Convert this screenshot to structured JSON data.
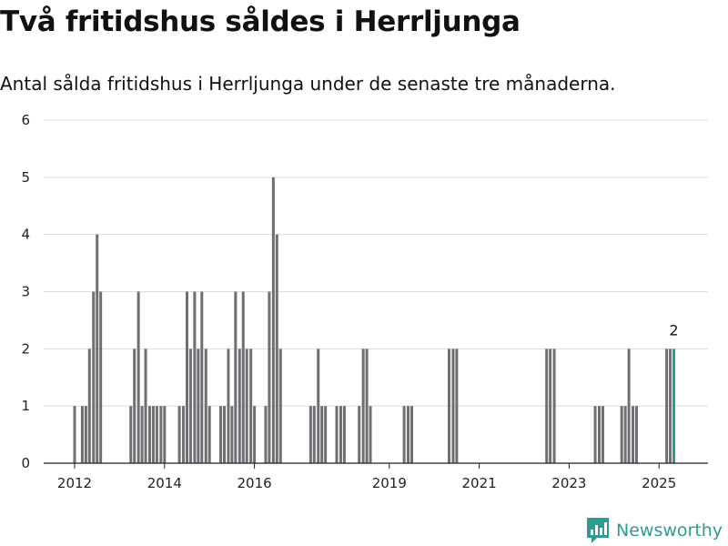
{
  "title": "Två fritidshus såldes i Herrljunga",
  "subtitle": "Antal sålda fritidshus i Herrljunga under de senaste tre månaderna.",
  "brand": {
    "name": "Newsworthy",
    "logo_icon": "newsworthy-logo-icon",
    "color": "#2f9b91"
  },
  "chart_data": {
    "type": "bar",
    "title": "Två fritidshus såldes i Herrljunga",
    "subtitle": "Antal sålda fritidshus i Herrljunga under de senaste tre månaderna.",
    "xlabel": "",
    "ylabel": "",
    "ylim": [
      0,
      6
    ],
    "yticks": [
      0,
      1,
      2,
      3,
      4,
      5,
      6
    ],
    "xticks": [
      "2012",
      "2014",
      "2016",
      "2019",
      "2021",
      "2023",
      "2025"
    ],
    "grid": true,
    "colors": {
      "bar": "#6f6f73",
      "highlight": "#2a9d8f"
    },
    "highlight_label": "2",
    "series": [
      {
        "values": [
          [
            2012.0,
            1
          ],
          [
            2012.17,
            1
          ],
          [
            2012.25,
            1
          ],
          [
            2012.33,
            2
          ],
          [
            2012.42,
            3
          ],
          [
            2012.5,
            4
          ],
          [
            2012.58,
            3
          ],
          [
            2013.25,
            1
          ],
          [
            2013.33,
            2
          ],
          [
            2013.42,
            3
          ],
          [
            2013.5,
            1
          ],
          [
            2013.58,
            2
          ],
          [
            2013.67,
            1
          ],
          [
            2013.75,
            1
          ],
          [
            2013.83,
            1
          ],
          [
            2013.92,
            1
          ],
          [
            2014.0,
            1
          ],
          [
            2014.33,
            1
          ],
          [
            2014.42,
            1
          ],
          [
            2014.5,
            3
          ],
          [
            2014.58,
            2
          ],
          [
            2014.67,
            3
          ],
          [
            2014.75,
            2
          ],
          [
            2014.83,
            3
          ],
          [
            2014.92,
            2
          ],
          [
            2015.0,
            1
          ],
          [
            2015.25,
            1
          ],
          [
            2015.33,
            1
          ],
          [
            2015.42,
            2
          ],
          [
            2015.5,
            1
          ],
          [
            2015.58,
            3
          ],
          [
            2015.67,
            2
          ],
          [
            2015.75,
            3
          ],
          [
            2015.83,
            2
          ],
          [
            2015.92,
            2
          ],
          [
            2016.0,
            1
          ],
          [
            2016.25,
            1
          ],
          [
            2016.33,
            3
          ],
          [
            2016.42,
            5
          ],
          [
            2016.5,
            4
          ],
          [
            2016.58,
            2
          ],
          [
            2017.25,
            1
          ],
          [
            2017.33,
            1
          ],
          [
            2017.42,
            2
          ],
          [
            2017.5,
            1
          ],
          [
            2017.58,
            1
          ],
          [
            2017.83,
            1
          ],
          [
            2017.92,
            1
          ],
          [
            2018.0,
            1
          ],
          [
            2018.33,
            1
          ],
          [
            2018.42,
            2
          ],
          [
            2018.5,
            2
          ],
          [
            2018.58,
            1
          ],
          [
            2019.33,
            1
          ],
          [
            2019.42,
            1
          ],
          [
            2019.5,
            1
          ],
          [
            2020.33,
            2
          ],
          [
            2020.42,
            2
          ],
          [
            2020.5,
            2
          ],
          [
            2022.5,
            2
          ],
          [
            2022.58,
            2
          ],
          [
            2022.67,
            2
          ],
          [
            2023.58,
            1
          ],
          [
            2023.67,
            1
          ],
          [
            2023.75,
            1
          ],
          [
            2024.17,
            1
          ],
          [
            2024.25,
            1
          ],
          [
            2024.33,
            2
          ],
          [
            2024.42,
            1
          ],
          [
            2024.5,
            1
          ],
          [
            2025.17,
            2
          ],
          [
            2025.25,
            2
          ],
          [
            2025.33,
            2
          ]
        ]
      }
    ]
  }
}
